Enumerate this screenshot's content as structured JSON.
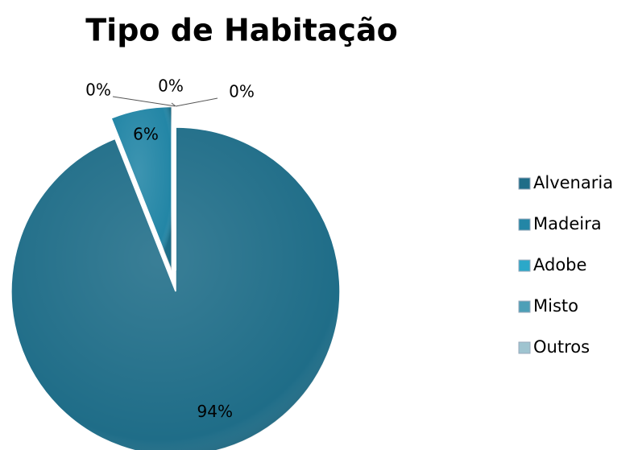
{
  "chart_data": {
    "type": "pie",
    "title": "Tipo de Habitação",
    "categories": [
      "Alvenaria",
      "Madeira",
      "Adobe",
      "Misto",
      "Outros"
    ],
    "values": [
      94,
      6,
      0,
      0,
      0
    ],
    "value_labels": [
      "94%",
      "6%",
      "0%",
      "0%",
      "0%"
    ],
    "colors": [
      "#1f6d88",
      "#2386a6",
      "#2ba8c9",
      "#4d9fb7",
      "#9fc4d0"
    ],
    "legend": "right"
  }
}
